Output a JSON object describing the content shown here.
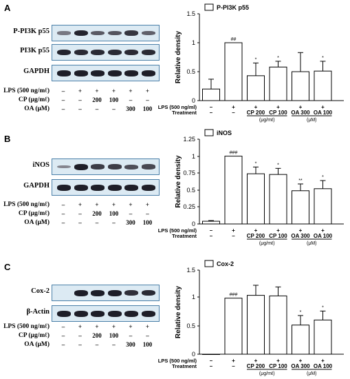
{
  "figure": {
    "panels": [
      {
        "letter": "A",
        "blots": [
          {
            "label": "P-PI3K p55",
            "bands": [
              0.25,
              0.95,
              0.5,
              0.55,
              0.8,
              0.45
            ]
          },
          {
            "label": "PI3K p55",
            "bands": [
              0.95,
              0.9,
              0.9,
              0.9,
              0.9,
              0.9
            ]
          },
          {
            "label": "GAPDH",
            "bands": [
              1,
              1,
              1,
              1,
              1,
              1
            ]
          }
        ],
        "treatments": [
          {
            "label": "LPS (500 ng/mℓ)",
            "values": [
              "–",
              "+",
              "+",
              "+",
              "+",
              "+"
            ]
          },
          {
            "label": "CP (μg/mℓ)",
            "values": [
              "–",
              "–",
              "200",
              "100",
              "–",
              "–"
            ]
          },
          {
            "label": "OA (μM)",
            "values": [
              "–",
              "–",
              "–",
              "–",
              "300",
              "100"
            ]
          }
        ]
      },
      {
        "letter": "B",
        "blots": [
          {
            "label": "iNOS",
            "bands": [
              0.15,
              1,
              0.75,
              0.75,
              0.6,
              0.65
            ]
          },
          {
            "label": "GAPDH",
            "bands": [
              1,
              1,
              1,
              1,
              1,
              1
            ]
          }
        ],
        "treatments": [
          {
            "label": "LPS (500 ng/mℓ)",
            "values": [
              "–",
              "+",
              "+",
              "+",
              "+",
              "+"
            ]
          },
          {
            "label": "CP (μg/mℓ)",
            "values": [
              "–",
              "–",
              "200",
              "100",
              "–",
              "–"
            ]
          },
          {
            "label": "OA (μM)",
            "values": [
              "–",
              "–",
              "–",
              "–",
              "300",
              "100"
            ]
          }
        ]
      },
      {
        "letter": "C",
        "blots": [
          {
            "label": "Cox-2",
            "bands": [
              0,
              1,
              1,
              1,
              0.85,
              0.9
            ]
          },
          {
            "label": "β-Actin",
            "bands": [
              1,
              1,
              1,
              1,
              1,
              1
            ]
          }
        ],
        "treatments": [
          {
            "label": "LPS (500 ng/mℓ)",
            "values": [
              "–",
              "+",
              "+",
              "+",
              "+",
              "+"
            ]
          },
          {
            "label": "CP (μg/mℓ)",
            "values": [
              "–",
              "–",
              "200",
              "100",
              "–",
              "–"
            ]
          },
          {
            "label": "OA (μM)",
            "values": [
              "–",
              "–",
              "–",
              "–",
              "300",
              "100"
            ]
          }
        ]
      }
    ]
  },
  "chart_data": [
    {
      "type": "bar",
      "legend": "P-PI3K p55",
      "ylabel": "Relative density",
      "ylim": [
        0,
        1.5
      ],
      "yticks": [
        "0",
        "0.5",
        "1",
        "1.5"
      ],
      "values": [
        0.2,
        1.0,
        0.43,
        0.58,
        0.5,
        0.51
      ],
      "errors": [
        0.17,
        0,
        0.22,
        0.1,
        0.33,
        0.17
      ],
      "marks": [
        "",
        "##",
        "*",
        "*",
        "",
        "*"
      ],
      "x_rows": {
        "lps_label": "LPS (500 ng/ml)",
        "treat_label": "Treatment",
        "lps": [
          "–",
          "+",
          "+",
          "+",
          "+",
          "+"
        ],
        "treat": [
          "–",
          "–",
          "CP 200",
          "CP 100",
          "OA 300",
          "OA 100"
        ],
        "unit_cp": "(μg/mℓ)",
        "unit_oa": "(μM)"
      }
    },
    {
      "type": "bar",
      "legend": "iNOS",
      "ylabel": "Relative density",
      "ylim": [
        0,
        1.25
      ],
      "yticks": [
        "0",
        "0.25",
        "0.5",
        "0.75",
        "1",
        "1.25"
      ],
      "values": [
        0.04,
        1.0,
        0.74,
        0.73,
        0.49,
        0.52
      ],
      "errors": [
        0.01,
        0,
        0.1,
        0.09,
        0.1,
        0.12
      ],
      "marks": [
        "",
        "###",
        "*",
        "*",
        "**",
        "*"
      ],
      "x_rows": {
        "lps_label": "LPS (500 ng/ml)",
        "treat_label": "Treatment",
        "lps": [
          "–",
          "+",
          "+",
          "+",
          "+",
          "+"
        ],
        "treat": [
          "–",
          "–",
          "CP 200",
          "CP 100",
          "OA 300",
          "OA 100"
        ],
        "unit_cp": "(μg/mℓ)",
        "unit_oa": "(μM)"
      }
    },
    {
      "type": "bar",
      "legend": "Cox-2",
      "ylabel": "Relative density",
      "ylim": [
        0,
        1.5
      ],
      "yticks": [
        "0",
        "0.5",
        "1",
        "1.5"
      ],
      "values": [
        0.0,
        1.0,
        1.05,
        1.04,
        0.52,
        0.61
      ],
      "errors": [
        0,
        0,
        0.18,
        0.16,
        0.17,
        0.16
      ],
      "marks": [
        "",
        "###",
        "",
        "",
        "*",
        "*"
      ],
      "x_rows": {
        "lps_label": "LPS (500 ng/ml)",
        "treat_label": "Treatment",
        "lps": [
          "–",
          "+",
          "+",
          "+",
          "+",
          "+"
        ],
        "treat": [
          "–",
          "–",
          "CP 200",
          "CP 100",
          "OA 300",
          "OA 100"
        ],
        "unit_cp": "(μg/mℓ)",
        "unit_oa": "(μM)"
      }
    }
  ]
}
